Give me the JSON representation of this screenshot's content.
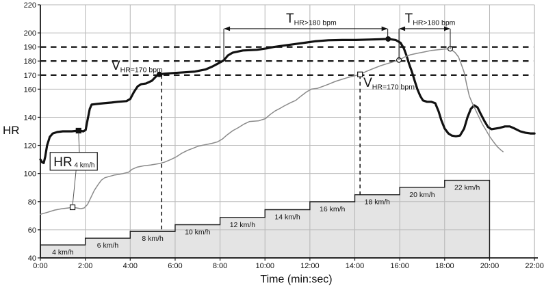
{
  "figure": {
    "y_axis_label": "HR",
    "x_axis_label": "Time (min:sec)"
  },
  "colors": {
    "bold_curve": "#111111",
    "gray_curve": "#8a8a8a",
    "step_fill": "#e4e4e4",
    "step_stroke": "#1a1a1a",
    "grid_vertical": "#b4b4b4",
    "grid_horizontal": "#bdbdbd",
    "axis": "#1a1a1a",
    "dashed_reference": "#1c1c1c",
    "annotation": "#111111",
    "connector": "#555555",
    "background": "#ffffff"
  },
  "chart_data": {
    "type": "line",
    "title": "",
    "xlabel": "Time (min:sec)",
    "ylabel": "HR",
    "y_unit": "bpm",
    "x_unit": "seconds",
    "x_range_sec": [
      0,
      1320
    ],
    "y_range_bpm": [
      40,
      220
    ],
    "x_ticks": [
      {
        "sec": 0,
        "label": "0:00"
      },
      {
        "sec": 120,
        "label": "2:00"
      },
      {
        "sec": 240,
        "label": "4:00"
      },
      {
        "sec": 360,
        "label": "6:00"
      },
      {
        "sec": 480,
        "label": "8:00"
      },
      {
        "sec": 600,
        "label": "10:00"
      },
      {
        "sec": 720,
        "label": "12:00"
      },
      {
        "sec": 840,
        "label": "14:00"
      },
      {
        "sec": 960,
        "label": "16:00"
      },
      {
        "sec": 1080,
        "label": "18:00"
      },
      {
        "sec": 1200,
        "label": "20:00"
      },
      {
        "sec": 1320,
        "label": "22:00"
      }
    ],
    "y_ticks": [
      40,
      60,
      80,
      100,
      120,
      140,
      160,
      170,
      180,
      190,
      200,
      220
    ],
    "y_gridlines": [
      60,
      80,
      100,
      120,
      140,
      160,
      200
    ],
    "reference_lines_bpm": [
      170,
      180,
      190
    ],
    "series": [
      {
        "id": "hr_bold",
        "name": "HR bold curve",
        "points": [
          [
            0,
            110
          ],
          [
            5,
            108
          ],
          [
            9,
            107.5
          ],
          [
            13,
            112
          ],
          [
            18,
            120
          ],
          [
            25,
            126
          ],
          [
            33,
            128.5
          ],
          [
            45,
            129.5
          ],
          [
            60,
            130
          ],
          [
            84,
            130
          ],
          [
            102,
            130.5
          ],
          [
            115,
            130
          ],
          [
            121,
            131
          ],
          [
            126,
            138
          ],
          [
            132,
            146
          ],
          [
            137,
            149
          ],
          [
            152,
            149.5
          ],
          [
            170,
            150
          ],
          [
            190,
            150.5
          ],
          [
            207,
            151
          ],
          [
            230,
            151.5
          ],
          [
            240,
            153
          ],
          [
            250,
            158
          ],
          [
            260,
            162
          ],
          [
            269,
            163.5
          ],
          [
            282,
            164
          ],
          [
            298,
            166
          ],
          [
            309,
            169
          ],
          [
            318,
            170.5
          ],
          [
            331,
            171
          ],
          [
            358,
            171.5
          ],
          [
            386,
            172
          ],
          [
            413,
            172.5
          ],
          [
            441,
            174
          ],
          [
            459,
            176
          ],
          [
            473,
            178
          ],
          [
            490,
            180.5
          ],
          [
            501,
            184
          ],
          [
            514,
            186
          ],
          [
            541,
            187.5
          ],
          [
            578,
            188
          ],
          [
            605,
            189
          ],
          [
            623,
            190
          ],
          [
            651,
            191
          ],
          [
            678,
            192
          ],
          [
            706,
            193
          ],
          [
            733,
            194
          ],
          [
            770,
            194.8
          ],
          [
            806,
            195
          ],
          [
            843,
            195
          ],
          [
            879,
            195.3
          ],
          [
            907,
            195.5
          ],
          [
            929,
            195.7
          ],
          [
            949,
            195
          ],
          [
            962,
            193
          ],
          [
            971,
            189
          ],
          [
            978,
            184
          ],
          [
            985,
            178
          ],
          [
            993,
            172
          ],
          [
            1000,
            166
          ],
          [
            1007,
            160
          ],
          [
            1015,
            155
          ],
          [
            1022,
            152
          ],
          [
            1033,
            151
          ],
          [
            1044,
            151
          ],
          [
            1055,
            150
          ],
          [
            1064,
            144
          ],
          [
            1071,
            138
          ],
          [
            1080,
            132
          ],
          [
            1090,
            128.5
          ],
          [
            1099,
            127
          ],
          [
            1110,
            126.5
          ],
          [
            1121,
            127
          ],
          [
            1132,
            132
          ],
          [
            1141,
            140
          ],
          [
            1150,
            146
          ],
          [
            1159,
            148.5
          ],
          [
            1168,
            147
          ],
          [
            1177,
            142
          ],
          [
            1187,
            137
          ],
          [
            1196,
            133
          ],
          [
            1205,
            131.5
          ],
          [
            1216,
            132
          ],
          [
            1227,
            132.5
          ],
          [
            1241,
            133.5
          ],
          [
            1254,
            133.5
          ],
          [
            1267,
            132
          ],
          [
            1282,
            130
          ],
          [
            1296,
            129
          ],
          [
            1309,
            128.5
          ],
          [
            1320,
            128.5
          ]
        ]
      },
      {
        "id": "hr_gray",
        "name": "HR gray curve",
        "points": [
          [
            0,
            71
          ],
          [
            20,
            72.5
          ],
          [
            38,
            74
          ],
          [
            57,
            75
          ],
          [
            75,
            75.5
          ],
          [
            86,
            76
          ],
          [
            97,
            75.5
          ],
          [
            108,
            75
          ],
          [
            117,
            75.5
          ],
          [
            126,
            78
          ],
          [
            135,
            83
          ],
          [
            144,
            88
          ],
          [
            154,
            92
          ],
          [
            163,
            95.3
          ],
          [
            172,
            97
          ],
          [
            185,
            98
          ],
          [
            199,
            99
          ],
          [
            212,
            99.5
          ],
          [
            221,
            100
          ],
          [
            236,
            101
          ],
          [
            245,
            103
          ],
          [
            258,
            104.5
          ],
          [
            276,
            105.5
          ],
          [
            294,
            106
          ],
          [
            316,
            107
          ],
          [
            331,
            108
          ],
          [
            349,
            110
          ],
          [
            364,
            112
          ],
          [
            378,
            114.5
          ],
          [
            393,
            116.5
          ],
          [
            408,
            118
          ],
          [
            422,
            119.5
          ],
          [
            441,
            120.5
          ],
          [
            459,
            121.5
          ],
          [
            473,
            122.5
          ],
          [
            486,
            124.5
          ],
          [
            499,
            127.5
          ],
          [
            514,
            130.5
          ],
          [
            528,
            132.5
          ],
          [
            543,
            135
          ],
          [
            559,
            137
          ],
          [
            583,
            137.5
          ],
          [
            601,
            139
          ],
          [
            614,
            142
          ],
          [
            627,
            144.5
          ],
          [
            638,
            146
          ],
          [
            651,
            148
          ],
          [
            669,
            150.5
          ],
          [
            682,
            152
          ],
          [
            696,
            155
          ],
          [
            711,
            158
          ],
          [
            724,
            160
          ],
          [
            739,
            160.5
          ],
          [
            755,
            162
          ],
          [
            770,
            163.5
          ],
          [
            788,
            165.5
          ],
          [
            806,
            167
          ],
          [
            824,
            168.5
          ],
          [
            839,
            169.5
          ],
          [
            854,
            170.5
          ],
          [
            870,
            172.5
          ],
          [
            888,
            174.5
          ],
          [
            907,
            176.5
          ],
          [
            925,
            178
          ],
          [
            943,
            179.5
          ],
          [
            958,
            180.7
          ],
          [
            974,
            183
          ],
          [
            989,
            184.5
          ],
          [
            1007,
            185.5
          ],
          [
            1026,
            186.5
          ],
          [
            1044,
            187.5
          ],
          [
            1062,
            188
          ],
          [
            1080,
            188.5
          ],
          [
            1095,
            188.7
          ],
          [
            1108,
            186
          ],
          [
            1117,
            183
          ],
          [
            1124,
            178
          ],
          [
            1132,
            172
          ],
          [
            1139,
            163
          ],
          [
            1146,
            155
          ],
          [
            1154,
            150
          ],
          [
            1163,
            145
          ],
          [
            1172,
            140
          ],
          [
            1181,
            135
          ],
          [
            1190,
            131
          ],
          [
            1201,
            126
          ],
          [
            1212,
            122
          ],
          [
            1221,
            119
          ],
          [
            1229,
            117
          ],
          [
            1236,
            115.5
          ]
        ]
      }
    ],
    "speed_steps": {
      "stages": [
        {
          "label": "4 km/h",
          "speed_kmh": 4,
          "start_sec": 0,
          "end_sec": 120,
          "top_bpm": 49.2
        },
        {
          "label": "6 km/h",
          "speed_kmh": 6,
          "start_sec": 120,
          "end_sec": 240,
          "top_bpm": 54.0
        },
        {
          "label": "8 km/h",
          "speed_kmh": 8,
          "start_sec": 240,
          "end_sec": 360,
          "top_bpm": 58.9
        },
        {
          "label": "10 km/h",
          "speed_kmh": 10,
          "start_sec": 360,
          "end_sec": 480,
          "top_bpm": 63.6
        },
        {
          "label": "12 km/h",
          "speed_kmh": 12,
          "start_sec": 480,
          "end_sec": 600,
          "top_bpm": 68.8
        },
        {
          "label": "14 km/h",
          "speed_kmh": 14,
          "start_sec": 600,
          "end_sec": 720,
          "top_bpm": 74.3
        },
        {
          "label": "16 km/h",
          "speed_kmh": 16,
          "start_sec": 720,
          "end_sec": 840,
          "top_bpm": 79.9
        },
        {
          "label": "18 km/h",
          "speed_kmh": 18,
          "start_sec": 840,
          "end_sec": 960,
          "top_bpm": 84.9
        },
        {
          "label": "20 km/h",
          "speed_kmh": 20,
          "start_sec": 960,
          "end_sec": 1080,
          "top_bpm": 90.2
        },
        {
          "label": "22 km/h",
          "speed_kmh": 22,
          "start_sec": 1080,
          "end_sec": 1200,
          "top_bpm": 95.2
        }
      ]
    },
    "markers": [
      {
        "shape": "square-filled",
        "series": "hr_bold",
        "sec": 102,
        "bpm": 130.5
      },
      {
        "shape": "square-open",
        "series": "hr_gray",
        "sec": 86,
        "bpm": 76
      },
      {
        "shape": "circle-filled",
        "series": "hr_bold",
        "sec": 318,
        "bpm": 170.5
      },
      {
        "shape": "square-open",
        "series": "hr_gray",
        "sec": 854,
        "bpm": 170.5
      },
      {
        "shape": "circle-filled",
        "series": "hr_bold",
        "sec": 929,
        "bpm": 195.7
      },
      {
        "shape": "circle-open",
        "series": "hr_gray",
        "sec": 958,
        "bpm": 180.7
      },
      {
        "shape": "circle-open",
        "series": "hr_gray",
        "sec": 1095,
        "bpm": 188.7
      }
    ],
    "dashed_drop_lines": [
      {
        "sec": 324,
        "from_bpm": 170
      },
      {
        "sec": 854,
        "from_bpm": 170
      }
    ],
    "span_arrows": [
      {
        "main": "T",
        "sub": "HR>180 bpm",
        "start_sec": 490,
        "end_sec": 928,
        "arrow_bpm": 203,
        "start_drop_bpm": 181,
        "end_drop_bpm": 195.7,
        "label_baseline_bpm": 207.3
      },
      {
        "main": "T",
        "sub": "HR>180 bpm",
        "start_sec": 958,
        "end_sec": 1095,
        "arrow_bpm": 203,
        "start_drop_bpm": 180.7,
        "end_drop_bpm": 188.7,
        "label_baseline_bpm": 207.3
      }
    ],
    "point_labels": [
      {
        "main": "V",
        "sub": "HR=170 bpm",
        "sec": 190,
        "baseline_bpm": 173.7
      },
      {
        "main": "V",
        "sub": "HR=170 bpm",
        "sec": 863,
        "baseline_bpm": 161.6
      }
    ],
    "boxed_label": {
      "main": "HR",
      "sub": "4 km/h",
      "box_sec": 26,
      "box_top_bpm": 115,
      "to_bold": {
        "sec": 102,
        "bpm": 130.5
      },
      "to_gray": {
        "sec": 86,
        "bpm": 76
      }
    }
  }
}
